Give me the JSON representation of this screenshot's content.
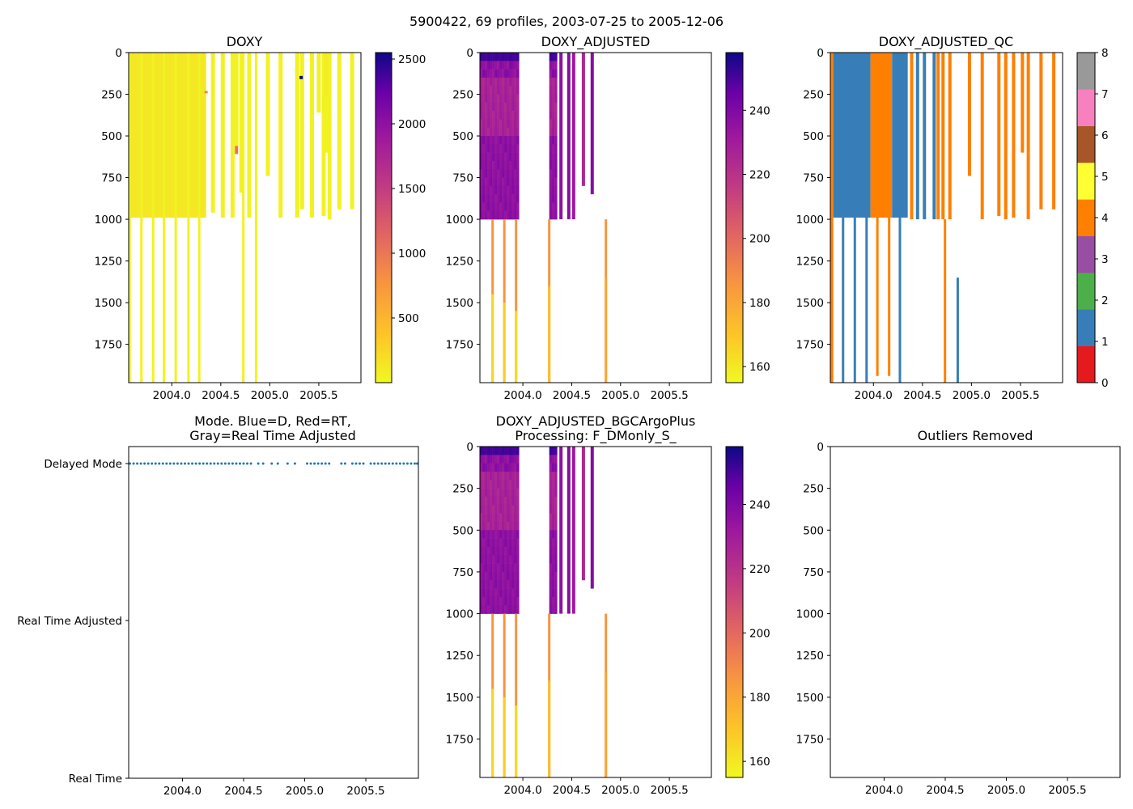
{
  "figure": {
    "title": "5900422, 69 profiles, 2003-07-25 to 2005-12-06"
  },
  "panels": {
    "doxy": {
      "title": "DOXY",
      "y_ticks": [
        "0",
        "250",
        "500",
        "750",
        "1000",
        "1250",
        "1500",
        "1750"
      ],
      "x_ticks": [
        "2004.0",
        "2004.5",
        "2005.0",
        "2005.5"
      ],
      "colorbar_ticks": [
        "500",
        "1000",
        "1500",
        "2000",
        "2500"
      ]
    },
    "doxy_adjusted": {
      "title": "DOXY_ADJUSTED",
      "y_ticks": [
        "0",
        "250",
        "500",
        "750",
        "1000",
        "1250",
        "1500",
        "1750"
      ],
      "x_ticks": [
        "2004.0",
        "2004.5",
        "2005.0",
        "2005.5"
      ],
      "colorbar_ticks": [
        "160",
        "180",
        "200",
        "220",
        "240"
      ]
    },
    "doxy_adjusted_qc": {
      "title": "DOXY_ADJUSTED_QC",
      "y_ticks": [
        "0",
        "250",
        "500",
        "750",
        "1000",
        "1250",
        "1500",
        "1750"
      ],
      "x_ticks": [
        "2004.0",
        "2004.5",
        "2005.0",
        "2005.5"
      ],
      "colorbar_ticks": [
        "0",
        "1",
        "2",
        "3",
        "4",
        "5",
        "6",
        "7",
        "8"
      ]
    },
    "mode": {
      "title_line1": "Mode. Blue=D, Red=RT,",
      "title_line2": "Gray=Real Time Adjusted",
      "y_ticks": [
        "Delayed Mode",
        "Real Time Adjusted",
        "Real Time"
      ],
      "x_ticks": [
        "2004.0",
        "2004.5",
        "2005.0",
        "2005.5"
      ]
    },
    "bgc": {
      "title_line1": "DOXY_ADJUSTED_BGCArgoPlus",
      "title_line2": "Processing: F_DMonly_S_",
      "y_ticks": [
        "0",
        "250",
        "500",
        "750",
        "1000",
        "1250",
        "1500",
        "1750"
      ],
      "x_ticks": [
        "2004.0",
        "2004.5",
        "2005.0",
        "2005.5"
      ],
      "colorbar_ticks": [
        "160",
        "180",
        "200",
        "220",
        "240"
      ]
    },
    "outliers": {
      "title": "Outliers Removed",
      "y_ticks": [
        "0",
        "250",
        "500",
        "750",
        "1000",
        "1250",
        "1500",
        "1750"
      ],
      "x_ticks": [
        "2004.0",
        "2004.5",
        "2005.0",
        "2005.5"
      ]
    }
  },
  "chart_data": [
    {
      "type": "heatmap",
      "title": "DOXY",
      "xlim": [
        2003.56,
        2005.93
      ],
      "ylim": [
        1980,
        0
      ],
      "colorbar": {
        "cmap": "plasma_r",
        "range": [
          0,
          2550
        ]
      },
      "note": "Most profiles shallow to ~1000 dbar near 100-200 umol/kg; a few full-depth profiles; isolated high outliers near 2005.3",
      "deep_profile_times": [
        2003.57,
        2003.69,
        2003.81,
        2003.92,
        2004.04,
        2004.17,
        2004.28,
        2004.73,
        2004.86
      ]
    },
    {
      "type": "heatmap",
      "title": "DOXY_ADJUSTED",
      "xlim": [
        2003.56,
        2005.93
      ],
      "ylim": [
        1980,
        0
      ],
      "colorbar": {
        "cmap": "plasma_r",
        "range": [
          155,
          258
        ]
      },
      "note": "Values ~245-255 near surface, ~225-240 at 200-1000 dbar, ~185-195 below 1000 dbar",
      "deep_profile_times": [
        2003.69,
        2003.81,
        2003.93,
        2004.27,
        2004.85
      ]
    },
    {
      "type": "heatmap",
      "title": "DOXY_ADJUSTED_QC",
      "xlim": [
        2003.56,
        2005.93
      ],
      "ylim": [
        1980,
        0
      ],
      "colorbar": {
        "cmap": "Set1",
        "range": [
          0,
          8
        ],
        "colors": [
          "#e41a1c",
          "#377eb8",
          "#4daf4a",
          "#984ea3",
          "#ff7f00",
          "#ffff33",
          "#a65628",
          "#f781bf",
          "#999999"
        ]
      },
      "note": "QC flag 1 (blue) for delayed-mode profiles, flag 4 (orange) for most others"
    },
    {
      "type": "scatter",
      "title": "Mode. Blue=D, Red=RT, Gray=Real Time Adjusted",
      "xlim": [
        2003.56,
        2005.93
      ],
      "categories": [
        "Real Time",
        "Real Time Adjusted",
        "Delayed Mode"
      ],
      "series": [
        {
          "name": "Delayed Mode",
          "color": "#1f77b4",
          "y": "Delayed Mode",
          "x": [
            2003.57,
            2003.6,
            2003.63,
            2003.66,
            2003.69,
            2003.72,
            2003.75,
            2003.78,
            2003.81,
            2003.84,
            2003.87,
            2003.9,
            2003.93,
            2003.96,
            2003.99,
            2004.02,
            2004.05,
            2004.08,
            2004.11,
            2004.14,
            2004.17,
            2004.2,
            2004.23,
            2004.26,
            2004.29,
            2004.32,
            2004.35,
            2004.38,
            2004.41,
            2004.44,
            2004.47,
            2004.5,
            2004.53,
            2004.56,
            2004.62,
            2004.66,
            2004.73,
            2004.78,
            2004.86,
            2004.92,
            2005.02,
            2005.05,
            2005.08,
            2005.11,
            2005.14,
            2005.17,
            2005.2,
            2005.3,
            2005.33,
            2005.39,
            2005.42,
            2005.45,
            2005.48,
            2005.54,
            2005.57,
            2005.6,
            2005.63,
            2005.66,
            2005.69,
            2005.72,
            2005.75,
            2005.78,
            2005.81,
            2005.84,
            2005.87,
            2005.9,
            2005.92
          ]
        }
      ]
    },
    {
      "type": "heatmap",
      "title": "DOXY_ADJUSTED_BGCArgoPlus Processing: F_DMonly_S_",
      "xlim": [
        2003.56,
        2005.93
      ],
      "ylim": [
        1980,
        0
      ],
      "colorbar": {
        "cmap": "plasma_r",
        "range": [
          155,
          258
        ]
      },
      "note": "Same as DOXY_ADJUSTED"
    },
    {
      "type": "scatter",
      "title": "Outliers Removed",
      "xlim": [
        2003.56,
        2005.93
      ],
      "ylim": [
        1980,
        0
      ],
      "series": []
    }
  ]
}
